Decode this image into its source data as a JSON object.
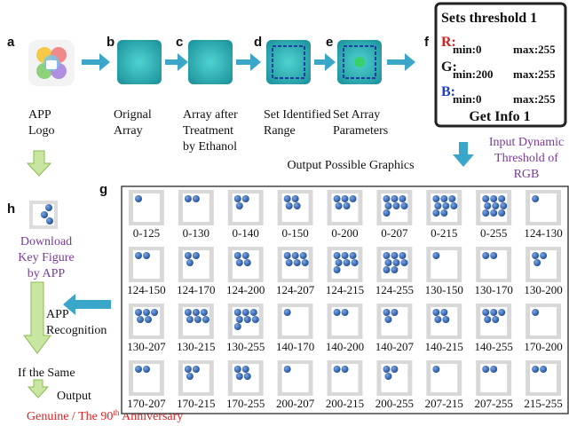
{
  "panels": {
    "a": "a",
    "b": "b",
    "c": "c",
    "d": "d",
    "e": "e",
    "f": "f",
    "g": "g",
    "h": "h"
  },
  "steps": {
    "a": [
      "APP",
      "Logo"
    ],
    "b": [
      "Orignal",
      "Array"
    ],
    "c": [
      "Array after",
      "Treatment",
      "by Ethanol"
    ],
    "d": [
      "Set Identified",
      " Range"
    ],
    "e": [
      "Set Array",
      "Parameters"
    ]
  },
  "threshold_box": {
    "title": "Sets threshold 1",
    "rows": [
      {
        "channel": "R:",
        "min": "min:0",
        "max": "max:255"
      },
      {
        "channel": "G:",
        "min": "min:200",
        "max": "max:255"
      },
      {
        "channel": "B:",
        "min": "min:0",
        "max": "max:255"
      }
    ],
    "button": "Get Info 1"
  },
  "input_note": [
    "Input Dynamic",
    "Threshold of",
    "RGB"
  ],
  "output_note": "Output Possible Graphics",
  "download_note": [
    "Download",
    "Key Figure",
    "by APP"
  ],
  "recognition": [
    "APP",
    "Recognition"
  ],
  "if_same": "If the Same",
  "output": "Output",
  "result": [
    "Genuine / The 90",
    "th",
    " Anniversary"
  ],
  "grid_labels": [
    "0-125",
    "0-130",
    "0-140",
    "0-150",
    "0-200",
    "0-207",
    "0-215",
    "0-255",
    "124-130",
    "124-150",
    "124-170",
    "124-200",
    "124-207",
    "124-215",
    "124-255",
    "130-150",
    "130-170",
    "130-200",
    "130-207",
    "130-215",
    "130-255",
    "140-170",
    "140-200",
    "140-207",
    "140-215",
    "140-255",
    "170-200",
    "170-207",
    "170-215",
    "170-255",
    "200-207",
    "200-215",
    "200-255",
    "207-215",
    "207-255",
    "215-255"
  ]
}
